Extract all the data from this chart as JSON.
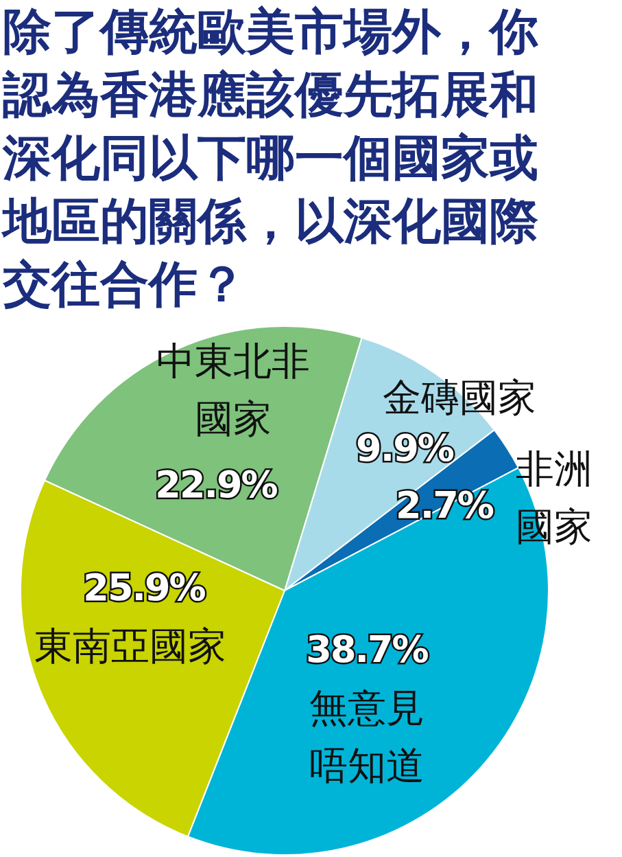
{
  "chart_data": {
    "type": "pie",
    "title": "除了傳統歐美市場外，你認為香港應該優先拓展和深化同以下哪一個國家或地區的關係，以深化國際交往合作？",
    "categories": [
      "金磚國家",
      "非洲國家",
      "無意見唔知道",
      "東南亞國家",
      "中東北非國家"
    ],
    "values": [
      9.9,
      2.7,
      38.7,
      25.9,
      22.9
    ],
    "colors": [
      "#a8dbea",
      "#0b6db3",
      "#00b4d8",
      "#c9d400",
      "#7ec27c"
    ],
    "value_labels": [
      "9.9%",
      "2.7%",
      "38.7%",
      "25.9%",
      "22.9%"
    ]
  }
}
